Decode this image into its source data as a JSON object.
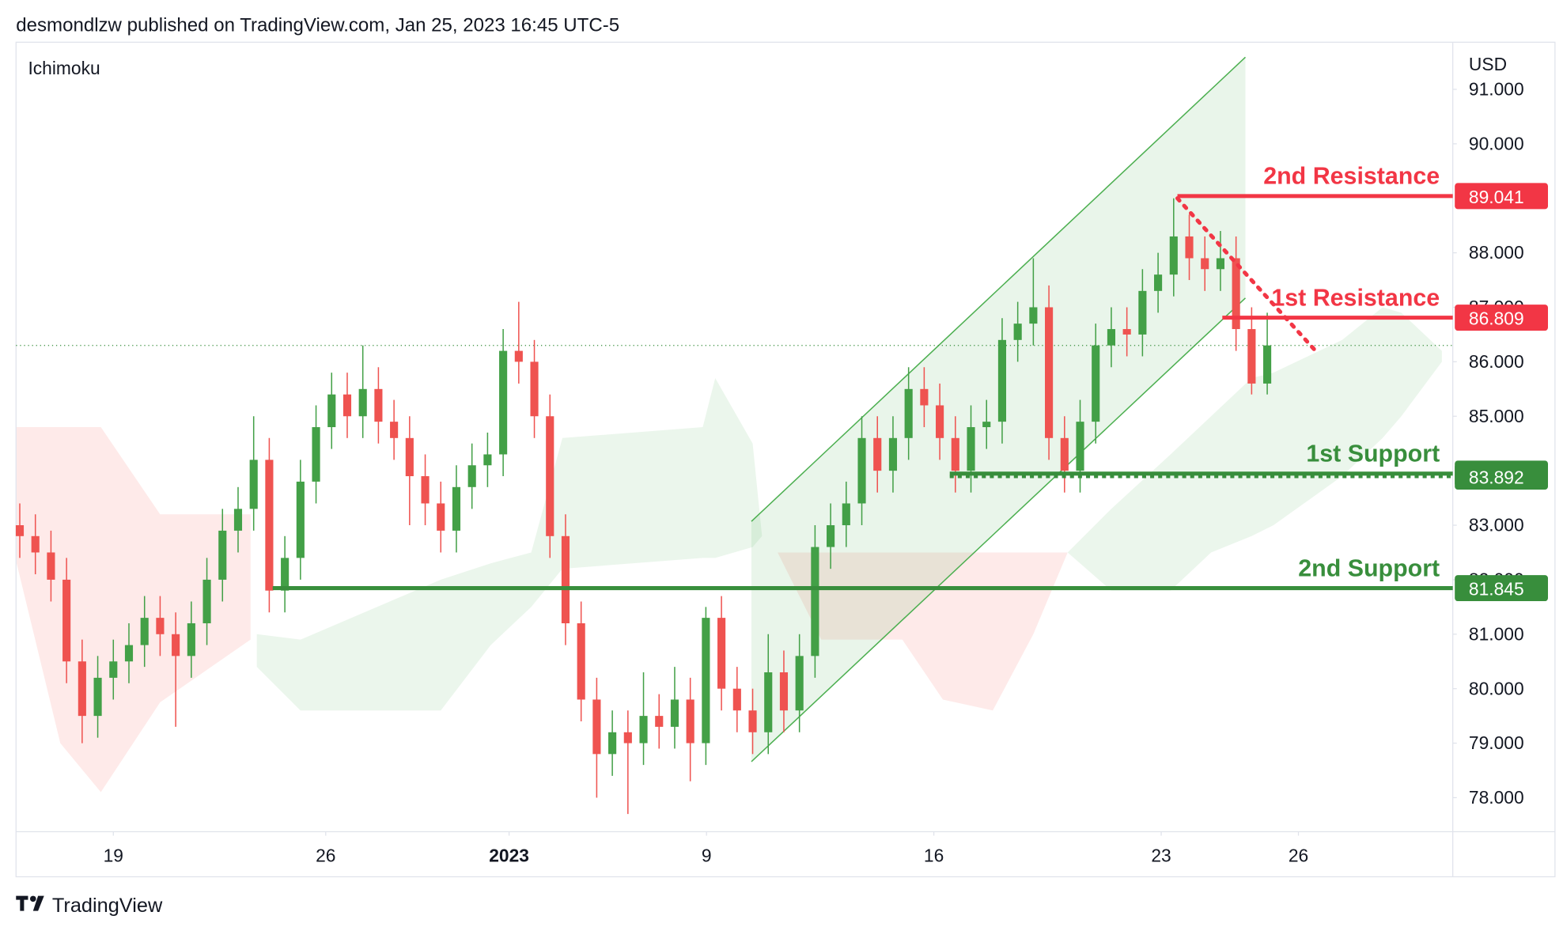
{
  "header": {
    "text": "desmondlzw published on TradingView.com, Jan 25, 2023 16:45 UTC-5"
  },
  "footer": {
    "brand": "TradingView"
  },
  "chart_data": {
    "type": "candlestick",
    "indicator": "Ichimoku",
    "currency": "USD",
    "xlim": [
      -3.12,
      42.95
    ],
    "ylim": [
      77.375,
      91.865
    ],
    "xticks": [
      {
        "value": 0,
        "label": "19"
      },
      {
        "value": 6.81,
        "label": "26"
      },
      {
        "value": 12.69,
        "label": "2023",
        "bold": true
      },
      {
        "value": 19.02,
        "label": "9"
      },
      {
        "value": 26.31,
        "label": "16"
      },
      {
        "value": 33.6,
        "label": "23"
      },
      {
        "value": 38.0,
        "label": "26"
      }
    ],
    "yticks": [
      {
        "value": 91,
        "label": "91.000"
      },
      {
        "value": 90,
        "label": "90.000"
      },
      {
        "value": 88,
        "label": "88.000"
      },
      {
        "value": 87,
        "label": "87.000"
      },
      {
        "value": 86,
        "label": "86.000"
      },
      {
        "value": 85,
        "label": "85.000"
      },
      {
        "value": 83,
        "label": "83.000"
      },
      {
        "value": 82,
        "label": "82.000"
      },
      {
        "value": 81,
        "label": "81.000"
      },
      {
        "value": 80,
        "label": "80.000"
      },
      {
        "value": 79,
        "label": "79.000"
      },
      {
        "value": 78,
        "label": "78.000"
      }
    ],
    "up_color": "#43a047",
    "down_color": "#ef5350",
    "x": [
      -3,
      -2.5,
      -2,
      -1.5,
      -1,
      -0.5,
      0,
      0.5,
      1,
      1.5,
      2,
      2.5,
      3,
      3.5,
      4,
      4.5,
      5,
      5.5,
      6,
      6.5,
      7,
      7.5,
      8,
      8.5,
      9,
      9.5,
      10,
      10.5,
      11,
      11.5,
      12,
      12.5,
      13,
      13.5,
      14,
      14.5,
      15,
      15.5,
      16,
      16.5,
      17,
      17.5,
      18,
      18.5,
      19,
      19.5,
      20,
      20.5,
      21,
      21.5,
      22,
      22.5,
      23,
      23.5,
      24,
      24.5,
      25,
      25.5,
      26,
      26.5,
      27,
      27.5,
      28,
      28.5,
      29,
      29.5,
      30,
      30.5,
      31,
      31.5,
      32,
      32.5,
      33,
      33.5,
      34,
      34.5,
      35,
      35.5,
      36,
      36.5,
      37
    ],
    "open": [
      83.0,
      82.8,
      82.5,
      82.0,
      80.5,
      79.5,
      80.2,
      80.5,
      80.8,
      81.3,
      81.0,
      80.6,
      81.2,
      82.0,
      82.9,
      83.3,
      84.2,
      81.8,
      82.4,
      83.8,
      84.8,
      85.4,
      85.0,
      85.5,
      84.9,
      84.6,
      83.9,
      83.4,
      82.9,
      83.7,
      84.1,
      84.3,
      86.2,
      86.0,
      85.0,
      82.8,
      81.2,
      79.8,
      78.8,
      79.2,
      79.0,
      79.5,
      79.3,
      79.8,
      79.0,
      81.3,
      80.0,
      79.6,
      79.2,
      80.3,
      79.6,
      80.6,
      82.6,
      83.0,
      83.4,
      84.6,
      84.0,
      84.6,
      85.5,
      85.2,
      84.6,
      84.0,
      84.8,
      84.9,
      86.4,
      86.7,
      87.0,
      84.6,
      84.0,
      84.9,
      86.3,
      86.6,
      86.5,
      87.3,
      87.6,
      88.3,
      87.9,
      87.7,
      87.9,
      86.6,
      85.6
    ],
    "high": [
      83.4,
      83.2,
      82.9,
      82.4,
      80.9,
      80.6,
      80.9,
      81.2,
      81.7,
      81.7,
      81.4,
      81.6,
      82.4,
      83.3,
      83.7,
      85.0,
      84.6,
      82.8,
      84.2,
      85.2,
      85.8,
      85.8,
      86.3,
      85.9,
      85.3,
      85.0,
      84.3,
      83.8,
      84.1,
      84.5,
      84.7,
      86.6,
      87.1,
      86.4,
      85.4,
      83.2,
      81.6,
      80.2,
      79.6,
      79.6,
      80.3,
      79.9,
      80.4,
      80.2,
      81.5,
      81.7,
      80.4,
      80.0,
      81.0,
      80.7,
      81.0,
      83.0,
      83.4,
      83.8,
      85.0,
      85.0,
      85.0,
      85.9,
      85.9,
      85.6,
      85.0,
      85.2,
      85.3,
      86.8,
      87.1,
      87.9,
      87.4,
      85.0,
      85.3,
      86.7,
      87.0,
      87.0,
      87.7,
      88.0,
      89.0,
      88.7,
      88.3,
      88.4,
      88.3,
      87.0,
      86.9
    ],
    "low": [
      82.4,
      82.1,
      81.6,
      80.1,
      79.0,
      79.1,
      79.8,
      80.1,
      80.4,
      80.6,
      79.3,
      80.2,
      80.8,
      81.6,
      82.5,
      82.9,
      81.4,
      81.4,
      82.0,
      83.4,
      84.4,
      84.6,
      84.6,
      84.5,
      84.2,
      83.0,
      83.0,
      82.5,
      82.5,
      83.3,
      83.7,
      83.9,
      85.6,
      84.6,
      82.4,
      80.8,
      79.4,
      78.0,
      78.4,
      77.7,
      78.6,
      78.9,
      78.9,
      78.3,
      78.6,
      79.6,
      79.2,
      78.8,
      78.8,
      79.2,
      79.2,
      80.2,
      82.2,
      82.6,
      83.0,
      83.6,
      83.6,
      84.2,
      84.8,
      84.2,
      83.6,
      83.6,
      84.4,
      84.5,
      86.0,
      86.3,
      84.2,
      83.6,
      83.6,
      84.5,
      85.9,
      86.1,
      86.1,
      86.9,
      87.2,
      87.5,
      87.3,
      87.3,
      86.2,
      85.4,
      85.4
    ],
    "close": [
      82.8,
      82.5,
      82.0,
      80.5,
      79.5,
      80.2,
      80.5,
      80.8,
      81.3,
      81.0,
      80.6,
      81.2,
      82.0,
      82.9,
      83.3,
      84.2,
      81.8,
      82.4,
      83.8,
      84.8,
      85.4,
      85.0,
      85.5,
      84.9,
      84.6,
      83.9,
      83.4,
      82.9,
      83.7,
      84.1,
      84.3,
      86.2,
      86.0,
      85.0,
      82.8,
      81.2,
      79.8,
      78.8,
      79.2,
      79.0,
      79.5,
      79.3,
      79.8,
      79.0,
      81.3,
      80.0,
      79.6,
      79.2,
      80.3,
      79.6,
      80.6,
      82.6,
      83.0,
      83.4,
      84.6,
      84.0,
      84.6,
      85.5,
      85.2,
      84.6,
      84.0,
      84.8,
      84.9,
      86.4,
      86.7,
      87.0,
      84.6,
      84.0,
      84.9,
      86.3,
      86.6,
      86.5,
      87.3,
      87.6,
      88.3,
      87.9,
      87.7,
      87.9,
      86.6,
      85.6,
      86.3
    ],
    "cloud": [
      {
        "color": "#f44336",
        "x": [
          -3.1,
          -1.7,
          -0.4,
          1.5,
          4.4
        ],
        "upper": [
          84.8,
          84.8,
          84.8,
          83.2,
          83.2
        ],
        "lower": [
          82.3,
          79.0,
          78.1,
          79.75,
          80.9
        ]
      },
      {
        "color": "#4caf50",
        "x": [
          4.6,
          6.0,
          10.5,
          12.1,
          13.4,
          14.4,
          18.9,
          19.3,
          20.5,
          20.8
        ],
        "upper": [
          81.0,
          80.9,
          82.0,
          82.3,
          82.5,
          84.6,
          84.8,
          85.7,
          84.5,
          82.8
        ],
        "lower": [
          80.4,
          79.6,
          79.6,
          80.8,
          81.5,
          82.2,
          82.4,
          82.4,
          82.6,
          82.8
        ]
      },
      {
        "color": "#f44336",
        "x": [
          21.3,
          22.7,
          25.3,
          26.6,
          28.2,
          29.5,
          30.6
        ],
        "upper": [
          82.5,
          82.5,
          82.5,
          82.5,
          82.5,
          82.5,
          82.5
        ],
        "lower": [
          82.5,
          80.9,
          80.9,
          79.8,
          79.6,
          81.0,
          82.5
        ]
      },
      {
        "color": "#4caf50",
        "x": [
          30.6,
          32.0,
          33.9,
          35.2,
          36.5,
          37.2,
          39.4,
          40.7,
          41.3,
          42.6
        ],
        "upper": [
          82.5,
          83.3,
          84.3,
          85.0,
          85.7,
          85.8,
          86.4,
          87.0,
          86.9,
          86.2
        ],
        "lower": [
          82.5,
          81.8,
          81.8,
          82.5,
          82.8,
          83.0,
          83.9,
          84.6,
          85.0,
          86.0
        ]
      }
    ],
    "channel": {
      "color": "#4caf50",
      "x": [
        20.46,
        36.3
      ],
      "upper": [
        83.07,
        91.59
      ],
      "lower": [
        78.66,
        87.17
      ]
    },
    "trend_line": {
      "color": "#f23645",
      "x": [
        34.12,
        38.55
      ],
      "y": [
        89.0,
        86.2
      ]
    },
    "levels": [
      {
        "name": "2nd Resistance",
        "value": 89.041,
        "x": 34.12,
        "color": "#f23645",
        "style": "solid"
      },
      {
        "name": "1st Resistance",
        "value": 86.809,
        "x": 35.56,
        "color": "#f23645",
        "style": "solid"
      },
      {
        "name": "1st Support",
        "value": 83.947,
        "x": 26.82,
        "color": "#388e3c",
        "style": "solid"
      },
      {
        "value": 83.892,
        "x": 26.82,
        "color": "#388e3c",
        "style": "dotted"
      },
      {
        "name": "2nd Support",
        "value": 81.845,
        "x": 5.11,
        "color": "#388e3c",
        "style": "solid"
      }
    ]
  }
}
